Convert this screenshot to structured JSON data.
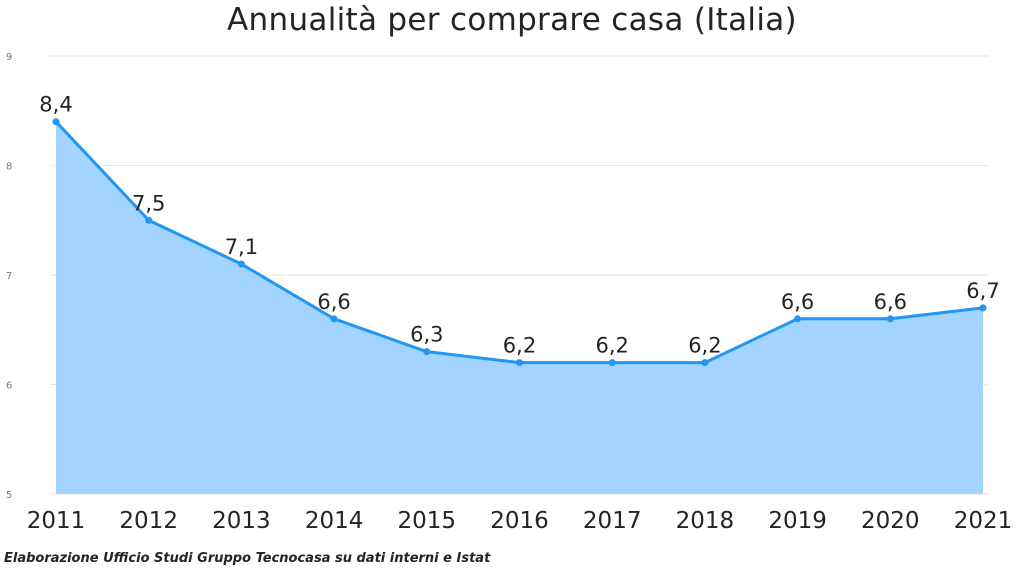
{
  "chart_data": {
    "type": "area",
    "title": "Annualità per comprare casa (Italia)",
    "categories": [
      "2011",
      "2012",
      "2013",
      "2014",
      "2015",
      "2016",
      "2017",
      "2018",
      "2019",
      "2020",
      "2021"
    ],
    "values": [
      8.4,
      7.5,
      7.1,
      6.6,
      6.3,
      6.2,
      6.2,
      6.2,
      6.6,
      6.6,
      6.7
    ],
    "data_labels": [
      "8,4",
      "7,5",
      "7,1",
      "6,6",
      "6,3",
      "6,2",
      "6,2",
      "6,2",
      "6,6",
      "6,6",
      "6,7"
    ],
    "y_ticks": [
      "5",
      "6",
      "7",
      "8",
      "9"
    ],
    "ylim": [
      5,
      9
    ],
    "xlabel": "",
    "ylabel": "",
    "grid": true,
    "colors": {
      "line": "#2196F3",
      "fill": "#A3D3FF",
      "grid": "#E6E6E6",
      "text": "#252423",
      "tick": "#777777"
    }
  },
  "source_note": "Elaborazione Ufficio Studi Gruppo Tecnocasa su dati interni e Istat"
}
